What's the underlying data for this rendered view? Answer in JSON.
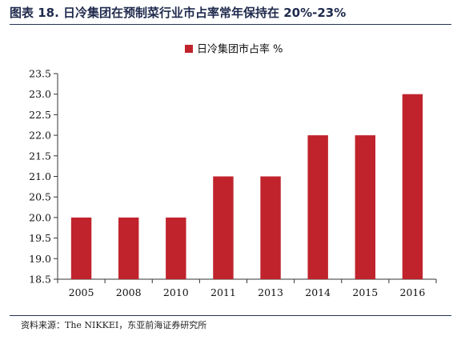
{
  "figure": {
    "title": "图表 18. 日冷集团在预制菜行业市占率常年保持在 20%-23%",
    "source": "资料来源：The NIKKEI，东亚前海证券研究所"
  },
  "chart_data": {
    "type": "bar",
    "categories": [
      "2005",
      "2008",
      "2010",
      "2011",
      "2013",
      "2014",
      "2015",
      "2016"
    ],
    "series": [
      {
        "name": "日冷集团市占率 %",
        "values": [
          20,
          20,
          20,
          21,
          21,
          22,
          22,
          23
        ]
      }
    ],
    "ylim": [
      18.5,
      23.5
    ],
    "yticks": [
      "18.5",
      "19.0",
      "19.5",
      "20.0",
      "20.5",
      "21.0",
      "21.5",
      "22.0",
      "22.5",
      "23.0",
      "23.5"
    ],
    "legend_position": "top-center",
    "grid": false
  },
  "colors": {
    "bar": "#c0232c",
    "axis": "#333333",
    "rule": "#243255"
  }
}
